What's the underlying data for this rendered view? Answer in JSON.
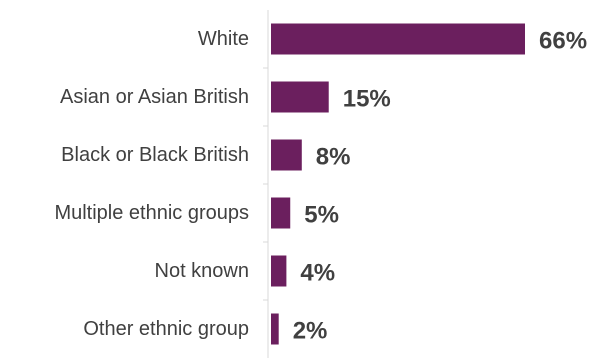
{
  "chart_data": {
    "type": "bar",
    "orientation": "horizontal",
    "categories": [
      "White",
      "Asian or Asian British",
      "Black or Black British",
      "Multiple ethnic groups",
      "Not known",
      "Other ethnic group"
    ],
    "values": [
      66,
      15,
      8,
      5,
      4,
      2
    ],
    "value_labels": [
      "66%",
      "15%",
      "8%",
      "5%",
      "4%",
      "2%"
    ],
    "value_unit": "%",
    "bar_color": "#6b1f5e",
    "axis_color": "#d9d9d9",
    "label_color": "#404040",
    "grid": false,
    "legend": "none"
  }
}
